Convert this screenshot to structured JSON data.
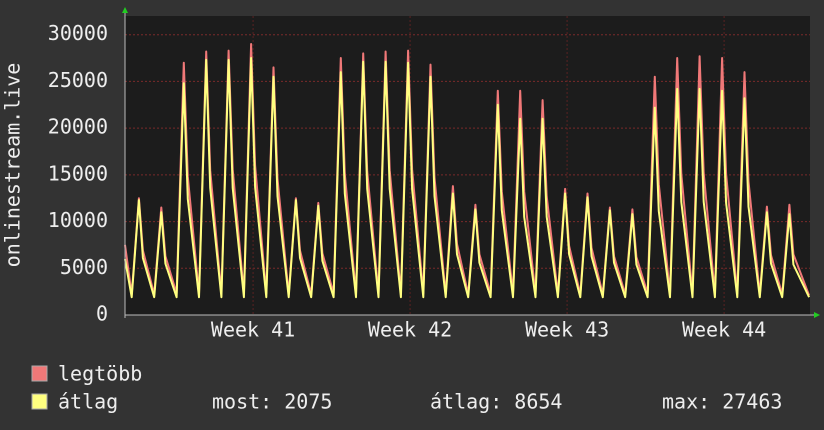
{
  "chart_data": {
    "type": "line",
    "y_label": "onlinestream.live",
    "x": [
      0,
      0.3,
      0.62,
      0.8,
      1.3,
      1.62,
      1.8,
      2.3,
      2.62,
      2.8,
      3.3,
      3.62,
      3.8,
      4.3,
      4.62,
      4.8,
      5.3,
      5.62,
      5.8,
      6.3,
      6.62,
      6.8,
      7.3,
      7.62,
      7.8,
      8.3,
      8.62,
      8.8,
      9.3,
      9.62,
      9.8,
      10.3,
      10.62,
      10.8,
      11.3,
      11.62,
      11.8,
      12.3,
      12.62,
      12.8,
      13.3,
      13.62,
      13.8,
      14.3,
      14.62,
      14.8,
      15.3,
      15.62,
      15.8,
      16.3,
      16.62,
      16.8,
      17.3,
      17.62,
      17.8,
      18.3,
      18.62,
      18.8,
      19.3,
      19.62,
      19.8,
      20.3,
      20.62,
      20.8,
      21.3,
      21.62,
      21.8,
      22.3,
      22.62,
      22.8,
      23.3,
      23.62,
      23.8,
      24.3,
      24.62,
      24.8,
      25.3,
      25.62,
      25.8,
      26.3,
      26.62,
      26.8,
      27.3,
      27.62,
      27.8,
      28.3,
      28.62,
      28.8,
      29.3,
      29.62,
      29.8,
      30.5
    ],
    "xlim": [
      0,
      30.54
    ],
    "xticks": [
      {
        "value": 5.71,
        "label": "Week 41"
      },
      {
        "value": 12.71,
        "label": "Week 42"
      },
      {
        "value": 19.71,
        "label": "Week 43"
      },
      {
        "value": 26.71,
        "label": "Week 44"
      }
    ],
    "ylim": [
      0,
      32000
    ],
    "yticks": [
      0,
      5000,
      10000,
      15000,
      20000,
      25000,
      30000
    ],
    "grid": true,
    "series": [
      {
        "name": "legtöbb",
        "color": "#f07878",
        "values": [
          7500,
          2200,
          12500,
          6900,
          2200,
          11500,
          6300,
          2300,
          27000,
          14800,
          2300,
          28200,
          15500,
          2300,
          28300,
          15600,
          2300,
          29000,
          16000,
          2300,
          26500,
          14600,
          2200,
          12500,
          6900,
          2200,
          12000,
          6600,
          2300,
          27500,
          15100,
          2300,
          28000,
          15400,
          2300,
          28200,
          15500,
          2300,
          28300,
          15600,
          2300,
          26800,
          14700,
          2200,
          13800,
          7600,
          2200,
          11800,
          6500,
          2300,
          24000,
          13200,
          2300,
          24000,
          13200,
          2300,
          23000,
          12700,
          2200,
          13500,
          7400,
          2200,
          13000,
          7200,
          2200,
          11500,
          6300,
          2200,
          11300,
          6200,
          2300,
          25500,
          14000,
          2300,
          27500,
          15100,
          2300,
          27700,
          15200,
          2300,
          27500,
          15100,
          2300,
          26000,
          14300,
          2200,
          11600,
          6400,
          2200,
          11800,
          6500,
          2100
        ]
      },
      {
        "name": "átlag",
        "color": "#ffff80",
        "values": [
          6000,
          1900,
          12300,
          6100,
          1900,
          11000,
          5500,
          1900,
          24800,
          12400,
          1900,
          27300,
          13600,
          1900,
          27300,
          13600,
          1900,
          27500,
          13700,
          1900,
          25500,
          12700,
          1900,
          12300,
          6100,
          1900,
          11700,
          5800,
          1900,
          26000,
          13000,
          1900,
          27100,
          13500,
          1900,
          27100,
          13500,
          1900,
          27000,
          13500,
          1900,
          25500,
          12700,
          1900,
          13000,
          6500,
          1900,
          11300,
          5600,
          1900,
          22500,
          11200,
          1900,
          21000,
          10500,
          1900,
          21000,
          10500,
          1900,
          13000,
          6500,
          1900,
          12600,
          6300,
          1900,
          11200,
          5600,
          1900,
          10800,
          5400,
          1900,
          22200,
          11100,
          1900,
          24200,
          12100,
          1900,
          24200,
          12100,
          1900,
          24000,
          12000,
          1900,
          23200,
          11600,
          1900,
          11000,
          5500,
          1900,
          10800,
          5400,
          1900
        ]
      }
    ],
    "stats": [
      "most: 2075",
      "átlag: 8654",
      "max: 27463"
    ]
  }
}
